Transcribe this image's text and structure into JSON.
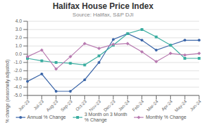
{
  "chart_data": {
    "type": "line",
    "title": "Halifax House Price Index",
    "subtitle": "Source: Halifax, S&P DJI",
    "ylabel": "% change (seasonally adjusted)",
    "categories": [
      "Jun-23",
      "Jul-23",
      "Aug-23",
      "Sep-23",
      "Oct-23",
      "Nov-23",
      "Dec-23",
      "Jan-24",
      "Feb-24",
      "Mar-24",
      "Apr-24",
      "May-24",
      "Jun-24"
    ],
    "series": [
      {
        "name": "Annual % Change",
        "color": "#3a65a8",
        "marker": "circle",
        "values": [
          -3.3,
          -2.4,
          -4.5,
          -4.5,
          -3.1,
          -1.0,
          1.8,
          2.5,
          1.7,
          0.5,
          1.1,
          1.7,
          1.7
        ]
      },
      {
        "name": "3 Month on 3 Month\n% Change",
        "color": "#3aada0",
        "marker": "square",
        "values": [
          -0.5,
          -0.8,
          -1.0,
          -1.1,
          -1.3,
          -0.2,
          1.1,
          2.5,
          3.0,
          2.1,
          1.1,
          -0.5,
          -0.5
        ]
      },
      {
        "name": "Monthly % Change",
        "color": "#b87ab0",
        "marker": "diamond",
        "values": [
          -0.3,
          0.5,
          -1.8,
          -0.3,
          1.3,
          0.7,
          1.2,
          1.3,
          0.3,
          -0.9,
          0.1,
          -0.1,
          0.1
        ]
      }
    ],
    "ylim": [
      -5.0,
      4.0
    ],
    "yticks": [
      {
        "value": -5.0,
        "label": "-5.0"
      },
      {
        "value": -4.0,
        "label": "-4.0"
      },
      {
        "value": -3.0,
        "label": "-3.0"
      },
      {
        "value": -2.0,
        "label": "-2.0"
      },
      {
        "value": -1.0,
        "label": "-1.0"
      },
      {
        "value": 0.0,
        "label": "0.0"
      },
      {
        "value": 1.0,
        "label": "1.0"
      },
      {
        "value": 2.0,
        "label": "2.0"
      },
      {
        "value": 3.0,
        "label": "3.0"
      },
      {
        "value": 4.0,
        "label": "4.0"
      }
    ],
    "grid": true,
    "legend": "bottom"
  }
}
